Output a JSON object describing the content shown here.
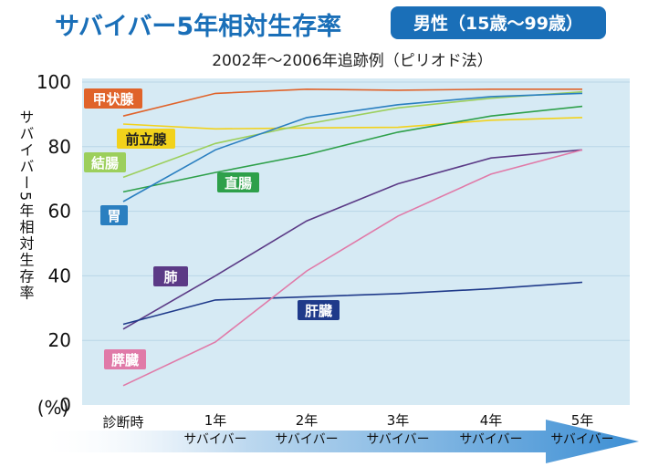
{
  "header": {
    "title": "サバイバー5年相対生存率",
    "badge": "男性（15歳〜99歳）",
    "subtitle": "2002年〜2006年追跡例（ピリオド法）"
  },
  "colors": {
    "title": "#1a6fb8",
    "badge_bg": "#1a6fb8",
    "plot_bg": "#d6eaf4",
    "arrow": "#5a9fd6"
  },
  "chart_data": {
    "type": "line",
    "ylabel": "サバイバー5年相対生存率",
    "y_unit": "(%)",
    "ylim": [
      0,
      100
    ],
    "yticks": [
      0,
      20,
      40,
      60,
      80,
      100
    ],
    "grid": true,
    "categories": [
      {
        "line1": "診断時",
        "line2": ""
      },
      {
        "line1": "1年",
        "line2": "サバイバー"
      },
      {
        "line1": "2年",
        "line2": "サバイバー"
      },
      {
        "line1": "3年",
        "line2": "サバイバー"
      },
      {
        "line1": "4年",
        "line2": "サバイバー"
      },
      {
        "line1": "5年",
        "line2": "サバイバー"
      }
    ],
    "series": [
      {
        "name": "甲状腺",
        "color": "#e0632a",
        "values": [
          89.5,
          96.5,
          97.8,
          97.5,
          97.8,
          97.8
        ]
      },
      {
        "name": "前立腺",
        "color": "#f2d21b",
        "values": [
          87.0,
          85.5,
          85.8,
          86.0,
          88.2,
          89.0
        ]
      },
      {
        "name": "結腸",
        "color": "#9ccf5c",
        "values": [
          70.5,
          81.0,
          87.0,
          92.0,
          95.0,
          97.0
        ]
      },
      {
        "name": "直腸",
        "color": "#2ea04a",
        "values": [
          66.0,
          72.0,
          77.5,
          84.5,
          89.5,
          92.5
        ]
      },
      {
        "name": "胃",
        "color": "#2a7fc0",
        "values": [
          63.0,
          79.0,
          89.0,
          93.0,
          95.5,
          96.5
        ]
      },
      {
        "name": "肺",
        "color": "#5b3a86",
        "values": [
          23.5,
          40.0,
          57.0,
          68.5,
          76.5,
          79.0
        ]
      },
      {
        "name": "肝臓",
        "color": "#1f3a8a",
        "values": [
          25.0,
          32.5,
          33.5,
          34.5,
          36.0,
          38.0
        ]
      },
      {
        "name": "膵臓",
        "color": "#e07aa8",
        "values": [
          6.0,
          19.5,
          41.5,
          58.5,
          71.5,
          79.0
        ]
      }
    ]
  }
}
